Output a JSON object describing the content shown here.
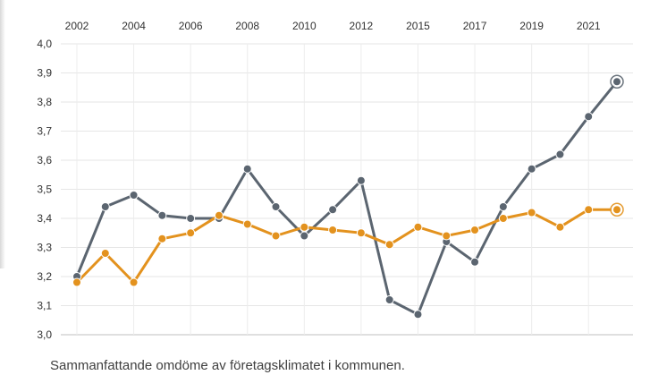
{
  "caption": "Sammanfattande omdöme av företagsklimatet i kommunen.",
  "chart_data": {
    "type": "line",
    "x_tick_labels": [
      "2002",
      "2004",
      "2006",
      "2008",
      "2010",
      "2012",
      "2015",
      "2017",
      "2019",
      "2021"
    ],
    "x": [
      "2002",
      "2003",
      "2004",
      "2005",
      "2006",
      "2007",
      "2008",
      "2009",
      "2010",
      "2011",
      "2012",
      "2013",
      "2015",
      "2016",
      "2017",
      "2018",
      "2019",
      "2020",
      "2021",
      "2022"
    ],
    "ylim": [
      3.0,
      4.0
    ],
    "y_tick_labels": [
      "3,0",
      "3,1",
      "3,2",
      "3,3",
      "3,4",
      "3,5",
      "3,6",
      "3,7",
      "3,8",
      "3,9",
      "4,0"
    ],
    "grid": true,
    "series": [
      {
        "color": "#5b6570",
        "values": [
          3.2,
          3.44,
          3.48,
          3.41,
          3.4,
          3.4,
          3.57,
          3.44,
          3.34,
          3.43,
          3.53,
          3.12,
          3.07,
          3.32,
          3.25,
          3.44,
          3.57,
          3.62,
          3.75,
          3.87
        ]
      },
      {
        "color": "#e3921e",
        "values": [
          3.18,
          3.28,
          3.18,
          3.33,
          3.35,
          3.41,
          3.38,
          3.34,
          3.37,
          3.36,
          3.35,
          3.31,
          3.37,
          3.34,
          3.36,
          3.4,
          3.42,
          3.37,
          3.43,
          3.43
        ]
      }
    ]
  }
}
